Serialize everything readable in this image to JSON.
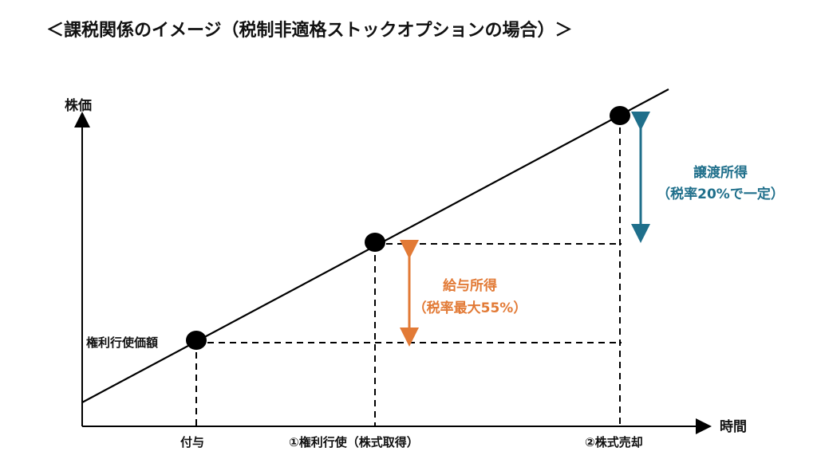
{
  "title": "＜課税関係のイメージ（税制非適格ストックオプションの場合）＞",
  "axes": {
    "y_label": "株価",
    "x_label": "時間"
  },
  "y_marker": "権利行使価額",
  "x_ticks": {
    "grant": "付与",
    "exercise": "①権利行使（株式取得）",
    "sale": "②株式売却"
  },
  "income": {
    "salary_line1": "給与所得",
    "salary_line2": "（税率最大55%）",
    "transfer_line1": "譲渡所得",
    "transfer_line2": "（税率20%で一定）"
  },
  "colors": {
    "salary": "#e27a36",
    "transfer": "#1f6f8b",
    "line": "#000000"
  }
}
